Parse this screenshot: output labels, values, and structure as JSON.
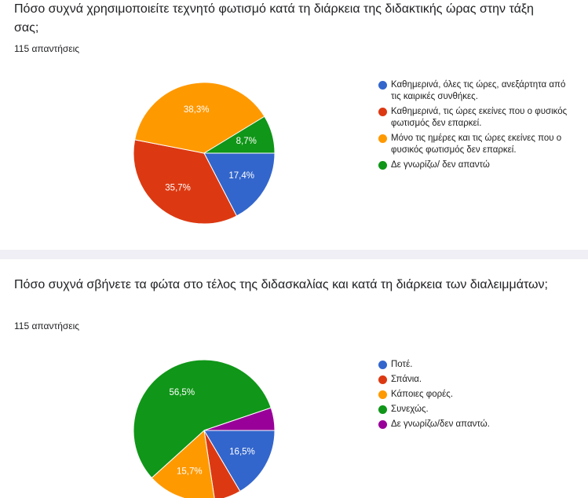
{
  "chart_data": [
    {
      "type": "pie",
      "title": "Πόσο συχνά χρησιμοποιείτε τεχνητό φωτισμό κατά τη διάρκεια της διδακτικής ώρας στην τάξη σας;",
      "subtitle": "115 απαντήσεις",
      "categories": [
        "Καθημερινά, όλες τις ώρες, ανεξάρτητα από τις καιρικές συνθήκες.",
        "Καθημερινά, τις ώρες εκείνες που ο φυσικός φωτισμός δεν επαρκεί.",
        "Μόνο τις ημέρες και τις ώρες εκείνες που ο φυσικός φωτισμός δεν επαρκεί.",
        "Δε γνωρίζω/ δεν απαντώ"
      ],
      "values": [
        17.4,
        35.7,
        38.3,
        8.7
      ],
      "value_labels": [
        "17,4%",
        "35,7%",
        "38,3%",
        "8,7%"
      ],
      "colors": [
        "#3366cc",
        "#dc3912",
        "#ff9900",
        "#109618"
      ]
    },
    {
      "type": "pie",
      "title": "Πόσο συχνά σβήνετε τα φώτα στο τέλος της διδασκαλίας και κατά τη διάρκεια των διαλειμμάτων;",
      "subtitle": "115 απαντήσεις",
      "categories": [
        "Ποτέ.",
        "Σπάνια.",
        "Κάποιες φορές.",
        "Συνεχώς.",
        "Δε γνωρίζω/δεν απαντώ."
      ],
      "values": [
        16.5,
        6.1,
        15.7,
        56.5,
        5.2
      ],
      "value_labels": [
        "16,5%",
        null,
        "15,7%",
        "56,5%",
        null
      ],
      "colors": [
        "#3366cc",
        "#dc3912",
        "#ff9900",
        "#109618",
        "#990099"
      ]
    }
  ]
}
